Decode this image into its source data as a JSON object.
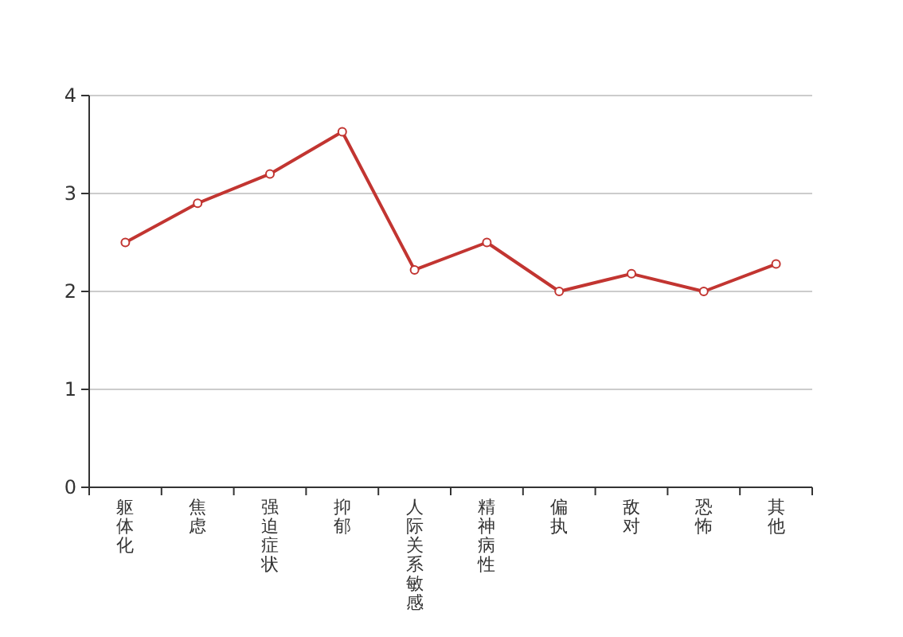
{
  "chart_data": {
    "type": "line",
    "categories": [
      "躯体化",
      "焦虑",
      "强迫症状",
      "抑郁",
      "人际关系敏感",
      "精神病性",
      "偏执",
      "敌对",
      "恐怖",
      "其他"
    ],
    "series": [
      {
        "color": "#c23531",
        "values": [
          2.5,
          2.9,
          3.2,
          3.63,
          2.22,
          2.5,
          2.0,
          2.18,
          2.0,
          2.28
        ]
      }
    ],
    "ylim": [
      0,
      4
    ],
    "yticks": [
      0,
      1,
      2,
      3,
      4
    ],
    "grid": "y",
    "marker": "circle",
    "line_style": "solid"
  }
}
